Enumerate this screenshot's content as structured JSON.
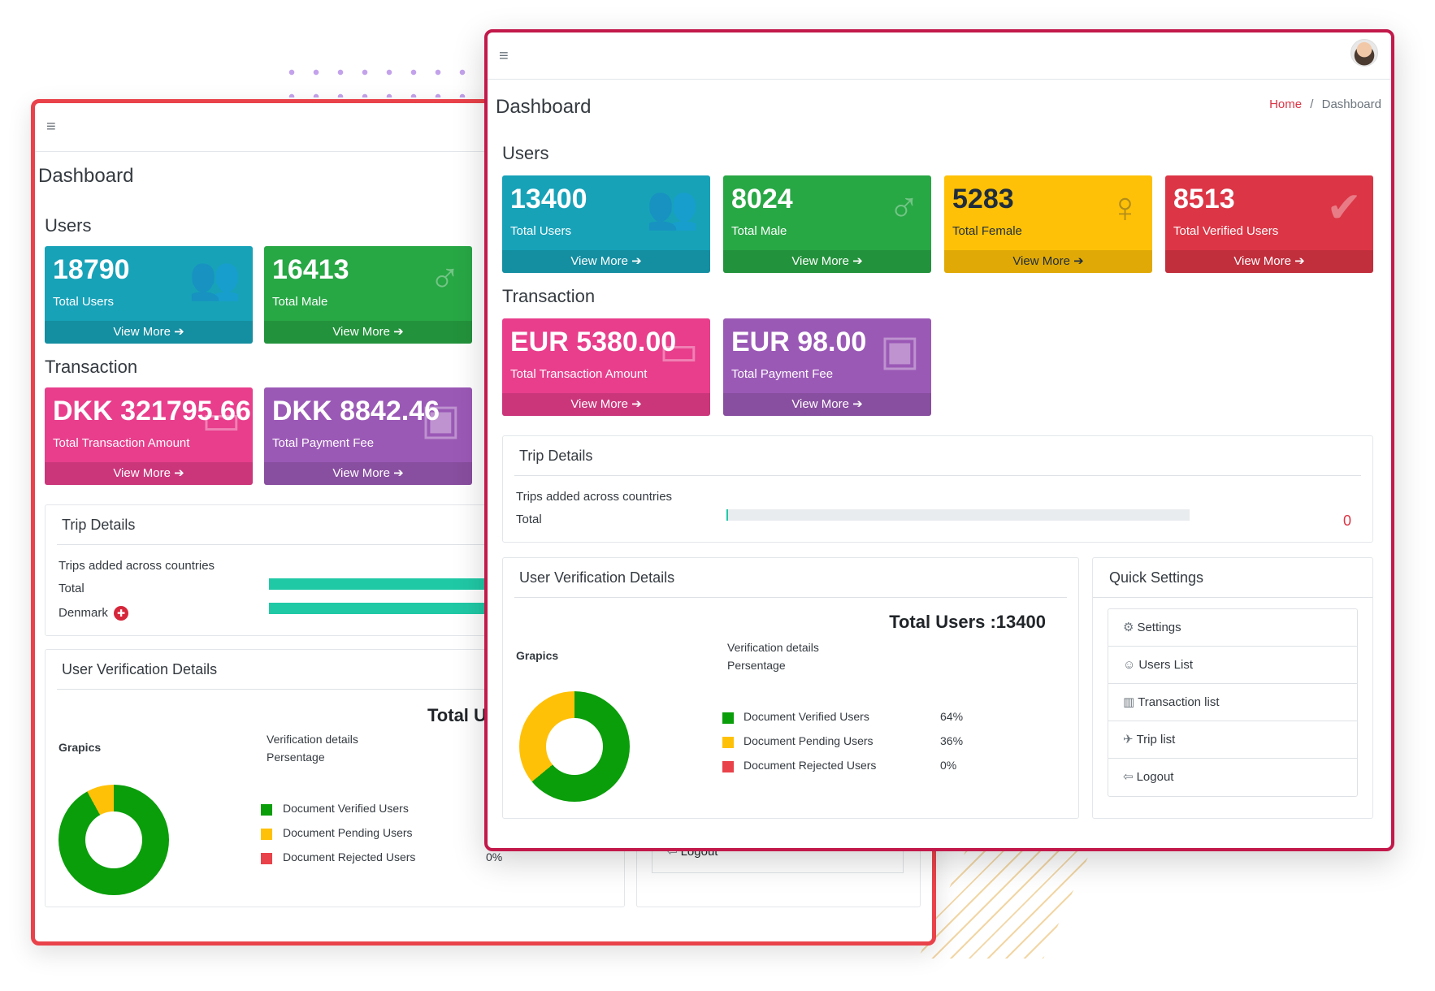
{
  "back": {
    "title": "Dashboard",
    "users_heading": "Users",
    "users_cards": [
      {
        "value": "18790",
        "label": "Total Users",
        "link": "View More ➔"
      },
      {
        "value": "16413",
        "label": "Total Male",
        "link": "View More ➔"
      }
    ],
    "transaction_heading": "Transaction",
    "transaction_cards": [
      {
        "value": "DKK 321795.66",
        "label": "Total Transaction Amount",
        "link": "View More ➔"
      },
      {
        "value": "DKK 8842.46",
        "label": "Total Payment Fee",
        "link": "View More ➔"
      }
    ],
    "trip": {
      "title": "Trip Details",
      "subtitle": "Trips added across countries",
      "rows": [
        "Total",
        "Denmark"
      ]
    },
    "verification": {
      "title": "User Verification Details",
      "total": "Total U",
      "graphics": "Grapics",
      "details_label": "Verification details",
      "percent_label": "Persentage",
      "legend": [
        "Document Verified Users",
        "Document Pending Users",
        "Document Rejected Users"
      ],
      "rejected_pct": "0%"
    },
    "logout": "Logout"
  },
  "front": {
    "title": "Dashboard",
    "breadcrumb": {
      "home": "Home",
      "sep": "/",
      "current": "Dashboard"
    },
    "users_heading": "Users",
    "users_cards": [
      {
        "value": "13400",
        "label": "Total Users",
        "link": "View More ➔"
      },
      {
        "value": "8024",
        "label": "Total Male",
        "link": "View More ➔"
      },
      {
        "value": "5283",
        "label": "Total Female",
        "link": "View More ➔"
      },
      {
        "value": "8513",
        "label": "Total Verified Users",
        "link": "View More ➔"
      }
    ],
    "transaction_heading": "Transaction",
    "transaction_cards": [
      {
        "value": "EUR 5380.00",
        "label": "Total Transaction Amount",
        "link": "View More ➔"
      },
      {
        "value": "EUR 98.00",
        "label": "Total Payment Fee",
        "link": "View More ➔"
      }
    ],
    "trip": {
      "title": "Trip Details",
      "subtitle": "Trips added across countries",
      "total_label": "Total",
      "total_value": "0"
    },
    "verification": {
      "title": "User Verification Details",
      "total": "Total Users :13400",
      "graphics": "Grapics",
      "details_label": "Verification details",
      "percent_label": "Persentage",
      "legend": [
        {
          "label": "Document Verified Users",
          "pct": "64%"
        },
        {
          "label": "Document Pending Users",
          "pct": "36%"
        },
        {
          "label": "Document Rejected Users",
          "pct": "0%"
        }
      ]
    },
    "quick_settings": {
      "title": "Quick Settings",
      "items": [
        "Settings",
        "Users List",
        "Transaction list",
        "Trip list",
        "Logout"
      ]
    }
  },
  "colors": {
    "teal": "#17a2b8",
    "green": "#28a745",
    "yellow": "#ffc107",
    "red": "#dc3545",
    "pink": "#e83e8c",
    "purple": "#9b59b6",
    "donut_green": "#0a9e0a",
    "donut_yellow": "#ffc107"
  }
}
